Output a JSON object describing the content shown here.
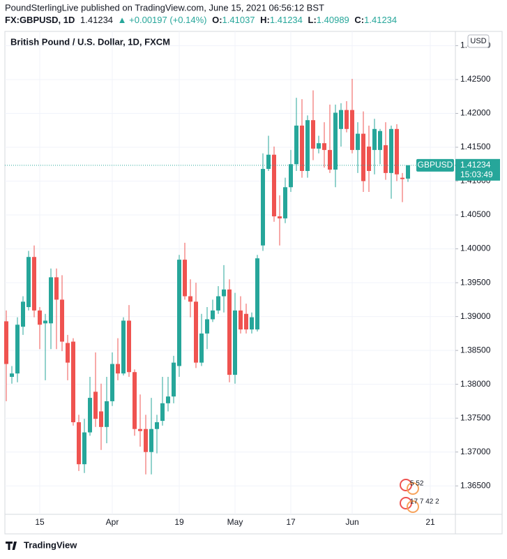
{
  "header": {
    "publisher": "PoundSterlingLive published on TradingView.com, June 15, 2021 06:56:12 BST",
    "symbol": "FX:GBPUSD, 1D",
    "arrow": "▲",
    "change": "+0.00197 (+0.14%)",
    "ohlc_labels": [
      "O:",
      "H:",
      "L:",
      "C:"
    ]
  },
  "chart_data": {
    "type": "candlestick",
    "title": "British Pound / U.S. Dollar, 1D, FXCM",
    "currency": "USD",
    "symbol_label": "GBPUSD",
    "countdown": "15:03:49",
    "up_color": "#26a69a",
    "down_color": "#ef5350",
    "grid": true,
    "categories": [
      null,
      null,
      null,
      null,
      null,
      null,
      "15",
      null,
      null,
      null,
      null,
      null,
      null,
      null,
      null,
      null,
      null,
      null,
      null,
      "Apr",
      null,
      null,
      null,
      null,
      null,
      null,
      null,
      null,
      null,
      null,
      null,
      "19",
      null,
      null,
      null,
      null,
      null,
      null,
      null,
      null,
      null,
      "May",
      null,
      null,
      null,
      null,
      null,
      null,
      null,
      null,
      null,
      "17",
      null,
      null,
      null,
      null,
      null,
      null,
      null,
      null,
      null,
      null,
      "Jun",
      null,
      null,
      null,
      null,
      null,
      null,
      null,
      null,
      null,
      null,
      null,
      null,
      null,
      "21",
      null,
      null,
      null,
      null
    ],
    "open": [
      1.3893,
      1.3811,
      1.3816,
      1.3885,
      1.3914,
      1.3988,
      1.3909,
      1.389,
      1.389,
      1.3958,
      1.3925,
      1.3861,
      1.3863,
      1.3744,
      1.3682,
      1.3729,
      1.3789,
      1.376,
      1.3737,
      1.3775,
      1.383,
      1.3816,
      1.3894,
      1.3818,
      1.3734,
      1.3734,
      1.37,
      1.3734,
      1.3746,
      1.3772,
      1.3782,
      1.3827,
      1.3984,
      1.393,
      1.3922,
      1.3832,
      1.3875,
      1.3896,
      1.3909,
      1.393,
      1.394,
      1.3814,
      1.3909,
      1.3904,
      1.3881,
      1.3881,
      1.4005,
      1.4118,
      1.4139,
      1.4048,
      1.4045,
      1.4091,
      1.4125,
      1.4182,
      1.4115,
      1.419,
      1.4148,
      1.4156,
      1.4146,
      1.4117,
      1.4177,
      1.4205,
      1.4205,
      1.4146,
      1.417,
      1.4151,
      1.4146,
      1.4146,
      1.4153,
      1.4112,
      1.4177,
      1.4105,
      1.41037,
      null,
      null,
      null,
      null,
      null,
      null,
      null,
      null
    ],
    "high": [
      1.3909,
      1.3827,
      1.3899,
      1.393,
      1.3997,
      1.4005,
      1.3914,
      1.3904,
      1.3971,
      1.3971,
      1.3961,
      1.3873,
      1.3868,
      1.3755,
      1.3749,
      1.3811,
      1.3847,
      1.3801,
      1.3811,
      1.3847,
      1.3868,
      1.3899,
      1.3917,
      1.3822,
      1.3785,
      1.3755,
      1.378,
      1.3755,
      1.3811,
      1.3811,
      1.3842,
      1.3991,
      1.4009,
      1.3955,
      1.395,
      1.3904,
      1.3914,
      1.3925,
      1.3945,
      1.3976,
      1.3955,
      1.3935,
      1.393,
      1.3919,
      1.3906,
      1.3991,
      1.4141,
      1.4167,
      1.4151,
      1.4079,
      1.4105,
      1.4146,
      1.4223,
      1.4221,
      1.4197,
      1.4234,
      1.4167,
      1.4187,
      1.4213,
      1.4213,
      1.4215,
      1.4218,
      1.4251,
      1.4187,
      1.4203,
      1.4182,
      1.4192,
      1.4177,
      1.4187,
      1.4182,
      1.4184,
      1.4112,
      1.41234,
      null,
      null,
      null,
      null,
      null,
      null,
      null,
      null
    ],
    "low": [
      1.3775,
      1.3801,
      1.3803,
      1.3873,
      1.3909,
      1.3899,
      1.3852,
      1.3806,
      1.3852,
      1.3852,
      1.3849,
      1.3806,
      1.3739,
      1.3672,
      1.3669,
      1.3724,
      1.3737,
      1.3703,
      1.3713,
      1.3768,
      1.3806,
      1.3813,
      1.3811,
      1.3724,
      1.3708,
      1.3667,
      1.3667,
      1.3698,
      1.3739,
      1.376,
      1.3772,
      1.3811,
      1.3925,
      1.3899,
      1.3824,
      1.3827,
      1.3852,
      1.3892,
      1.3904,
      1.3906,
      1.3803,
      1.3801,
      1.3875,
      1.3875,
      1.3875,
      1.3878,
      1.3997,
      1.4115,
      1.404,
      1.4005,
      1.4038,
      1.4084,
      1.4115,
      1.4105,
      1.4105,
      1.4131,
      1.4141,
      1.412,
      1.4112,
      1.4091,
      1.4151,
      1.4172,
      1.4141,
      1.4112,
      1.4084,
      1.4084,
      1.411,
      1.4125,
      1.4102,
      1.4074,
      1.41,
      1.4069,
      1.40989,
      null,
      null,
      null,
      null,
      null,
      null,
      null,
      null
    ],
    "close": [
      1.383,
      1.3816,
      1.3888,
      1.3922,
      1.3988,
      1.3909,
      1.3888,
      1.3894,
      1.3958,
      1.3925,
      1.3863,
      1.3832,
      1.3744,
      1.3682,
      1.3729,
      1.378,
      1.3749,
      1.3737,
      1.3775,
      1.383,
      1.3816,
      1.3894,
      1.3818,
      1.3734,
      1.3731,
      1.37,
      1.3734,
      1.3744,
      1.3772,
      1.3782,
      1.3832,
      1.3984,
      1.393,
      1.3922,
      1.3832,
      1.3875,
      1.3896,
      1.3909,
      1.393,
      1.394,
      1.3814,
      1.3909,
      1.3881,
      1.3881,
      1.3899,
      1.3986,
      1.4118,
      1.4139,
      1.4048,
      1.4045,
      1.4091,
      1.4125,
      1.4182,
      1.4115,
      1.419,
      1.4148,
      1.4156,
      1.4146,
      1.4117,
      1.4201,
      1.4205,
      1.4177,
      1.4146,
      1.417,
      1.41,
      1.4115,
      1.4177,
      1.4174,
      1.4112,
      1.4177,
      1.411,
      1.4103,
      1.41234,
      null,
      null,
      null,
      null,
      null,
      null,
      null,
      null
    ],
    "ylim": [
      1.3608,
      1.4319
    ],
    "yticks": [
      {
        "value": 1.365,
        "label": "1.36500"
      },
      {
        "value": 1.37,
        "label": "1.37000"
      },
      {
        "value": 1.375,
        "label": "1.37500"
      },
      {
        "value": 1.38,
        "label": "1.38000"
      },
      {
        "value": 1.385,
        "label": "1.38500"
      },
      {
        "value": 1.39,
        "label": "1.39000"
      },
      {
        "value": 1.395,
        "label": "1.39500"
      },
      {
        "value": 1.4,
        "label": "1.40000"
      },
      {
        "value": 1.405,
        "label": "1.40500"
      },
      {
        "value": 1.41,
        "label": "1.41000"
      },
      {
        "value": 1.415,
        "label": "1.41500"
      },
      {
        "value": 1.42,
        "label": "1.42000"
      },
      {
        "value": 1.425,
        "label": "1.42500"
      },
      {
        "value": 1.43,
        "label": "1.43000"
      }
    ],
    "events": [
      "5 52",
      "17 7 42 2"
    ]
  },
  "footer": {
    "brand": "TradingView"
  }
}
